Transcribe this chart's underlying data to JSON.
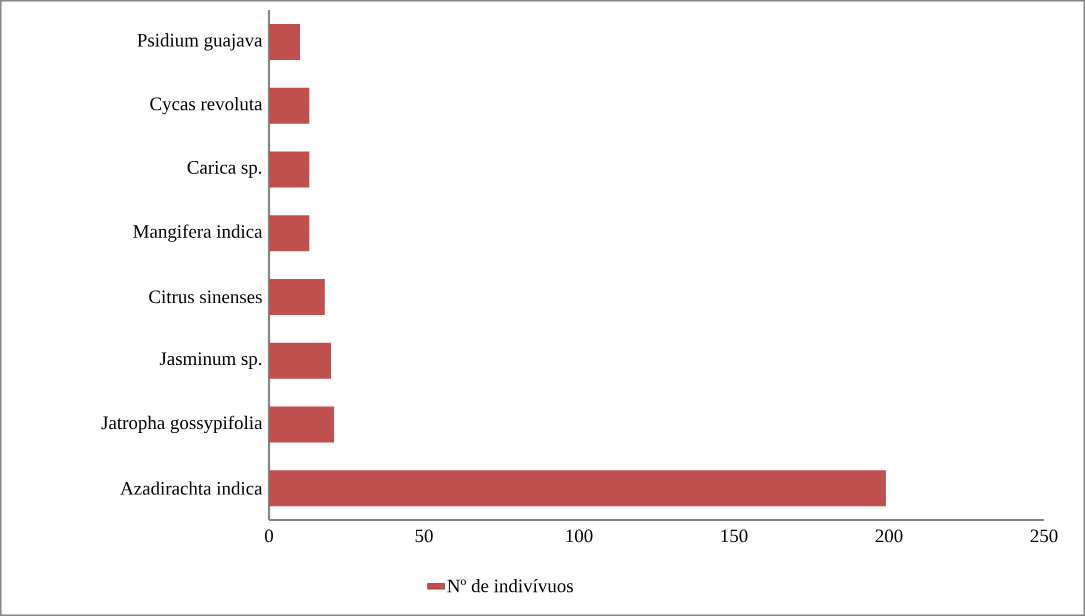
{
  "chart_data": {
    "type": "bar",
    "orientation": "horizontal",
    "categories": [
      "Psidium guajava",
      "Cycas revoluta",
      "Carica sp.",
      "Mangifera indica",
      "Citrus sinenses",
      "Jasminum sp.",
      "Jatropha gossypifolia",
      "Azadirachta indica"
    ],
    "series": [
      {
        "name": "Nº de indivívuos",
        "color": "#c0504d",
        "values": [
          10,
          13,
          13,
          13,
          18,
          20,
          21,
          199
        ]
      }
    ],
    "xlim": [
      0,
      250
    ],
    "xticks": [
      0,
      50,
      100,
      150,
      200,
      250
    ],
    "legend": "bottom"
  }
}
